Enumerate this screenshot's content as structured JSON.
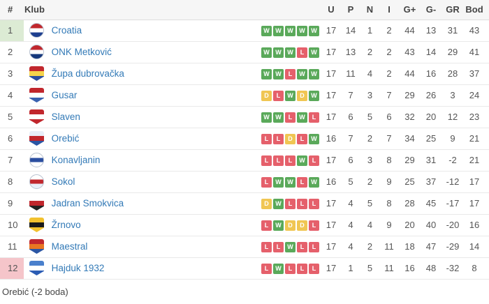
{
  "table": {
    "headers": {
      "pos": "#",
      "club": "Klub",
      "form": "",
      "u": "U",
      "p": "P",
      "n": "N",
      "i": "I",
      "g_plus": "G+",
      "g_minus": "G-",
      "gr": "GR",
      "bod": "Bod"
    },
    "rows": [
      {
        "pos": "1",
        "club": "Croatia",
        "highlight": "top",
        "form": [
          "W",
          "W",
          "W",
          "W",
          "W"
        ],
        "u": "17",
        "p": "14",
        "n": "1",
        "i": "2",
        "gp": "44",
        "gm": "13",
        "gr": "31",
        "bod": "43",
        "icon": {
          "name": "croatia-crest-icon",
          "shape": "circle",
          "colors": [
            "#c1272d",
            "#ffffff",
            "#1e3f8f"
          ]
        }
      },
      {
        "pos": "2",
        "club": "ONK Metković",
        "highlight": "",
        "form": [
          "W",
          "W",
          "W",
          "L",
          "W"
        ],
        "u": "17",
        "p": "13",
        "n": "2",
        "i": "2",
        "gp": "43",
        "gm": "14",
        "gr": "29",
        "bod": "41",
        "icon": {
          "name": "onk-metkovic-crest-icon",
          "shape": "circle",
          "colors": [
            "#c1272d",
            "#ffffff",
            "#16387c"
          ]
        }
      },
      {
        "pos": "3",
        "club": "Župa dubrovačka",
        "highlight": "",
        "form": [
          "W",
          "W",
          "L",
          "W",
          "W"
        ],
        "u": "17",
        "p": "11",
        "n": "4",
        "i": "2",
        "gp": "44",
        "gm": "16",
        "gr": "28",
        "bod": "37",
        "icon": {
          "name": "zupa-dubrovacka-crest-icon",
          "shape": "shield",
          "colors": [
            "#c1272d",
            "#f5d34c",
            "#2b4ea0"
          ]
        }
      },
      {
        "pos": "4",
        "club": "Gusar",
        "highlight": "",
        "form": [
          "D",
          "L",
          "W",
          "D",
          "W"
        ],
        "u": "17",
        "p": "7",
        "n": "3",
        "i": "7",
        "gp": "29",
        "gm": "26",
        "gr": "3",
        "bod": "24",
        "icon": {
          "name": "gusar-crest-icon",
          "shape": "shield",
          "colors": [
            "#c1272d",
            "#ffffff",
            "#3a62b0"
          ]
        }
      },
      {
        "pos": "5",
        "club": "Slaven",
        "highlight": "",
        "form": [
          "W",
          "W",
          "L",
          "W",
          "L"
        ],
        "u": "17",
        "p": "6",
        "n": "5",
        "i": "6",
        "gp": "32",
        "gm": "20",
        "gr": "12",
        "bod": "23",
        "icon": {
          "name": "slaven-crest-icon",
          "shape": "shield",
          "colors": [
            "#c1272d",
            "#ffffff",
            "#c1272d"
          ]
        }
      },
      {
        "pos": "6",
        "club": "Orebić",
        "highlight": "",
        "form": [
          "L",
          "L",
          "D",
          "L",
          "W"
        ],
        "u": "16",
        "p": "7",
        "n": "2",
        "i": "7",
        "gp": "34",
        "gm": "25",
        "gr": "9",
        "bod": "21",
        "icon": {
          "name": "orebic-crest-icon",
          "shape": "shield",
          "colors": [
            "#e8eef8",
            "#c1272d",
            "#2b56a4"
          ]
        }
      },
      {
        "pos": "7",
        "club": "Konavljanin",
        "highlight": "",
        "form": [
          "L",
          "L",
          "L",
          "W",
          "L"
        ],
        "u": "17",
        "p": "6",
        "n": "3",
        "i": "8",
        "gp": "29",
        "gm": "31",
        "gr": "-2",
        "bod": "21",
        "icon": {
          "name": "konavljanin-crest-icon",
          "shape": "circle",
          "colors": [
            "#ffffff",
            "#2b4ea0",
            "#ffffff"
          ]
        }
      },
      {
        "pos": "8",
        "club": "Sokol",
        "highlight": "",
        "form": [
          "L",
          "W",
          "W",
          "L",
          "W"
        ],
        "u": "16",
        "p": "5",
        "n": "2",
        "i": "9",
        "gp": "25",
        "gm": "37",
        "gr": "-12",
        "bod": "17",
        "icon": {
          "name": "sokol-crest-icon",
          "shape": "circle",
          "colors": [
            "#ffffff",
            "#c1272d",
            "#e8eef8"
          ]
        }
      },
      {
        "pos": "9",
        "club": "Jadran Smokvica",
        "highlight": "",
        "form": [
          "D",
          "W",
          "L",
          "L",
          "L"
        ],
        "u": "17",
        "p": "4",
        "n": "5",
        "i": "8",
        "gp": "28",
        "gm": "45",
        "gr": "-17",
        "bod": "17",
        "icon": {
          "name": "jadran-smokvica-crest-icon",
          "shape": "shield",
          "colors": [
            "#ffffff",
            "#c1272d",
            "#222222"
          ]
        }
      },
      {
        "pos": "10",
        "club": "Žrnovo",
        "highlight": "",
        "form": [
          "L",
          "W",
          "D",
          "D",
          "L"
        ],
        "u": "17",
        "p": "4",
        "n": "4",
        "i": "9",
        "gp": "20",
        "gm": "40",
        "gr": "-20",
        "bod": "16",
        "icon": {
          "name": "zrnovo-crest-icon",
          "shape": "shield",
          "colors": [
            "#f2c12e",
            "#1a1a1a",
            "#f2c12e"
          ]
        }
      },
      {
        "pos": "11",
        "club": "Maestral",
        "highlight": "",
        "form": [
          "L",
          "L",
          "W",
          "L",
          "L"
        ],
        "u": "17",
        "p": "4",
        "n": "2",
        "i": "11",
        "gp": "18",
        "gm": "47",
        "gr": "-29",
        "bod": "14",
        "icon": {
          "name": "maestral-crest-icon",
          "shape": "shield",
          "colors": [
            "#c1272d",
            "#e87722",
            "#2b56a4"
          ]
        }
      },
      {
        "pos": "12",
        "club": "Hajduk 1932",
        "highlight": "bottom",
        "form": [
          "L",
          "W",
          "L",
          "L",
          "L"
        ],
        "u": "17",
        "p": "1",
        "n": "5",
        "i": "11",
        "gp": "16",
        "gm": "48",
        "gr": "-32",
        "bod": "8",
        "icon": {
          "name": "hajduk-1932-crest-icon",
          "shape": "shield",
          "colors": [
            "#4a80cc",
            "#ffffff",
            "#2b5cb4"
          ]
        }
      }
    ]
  },
  "footer": {
    "note": "Orebić (-2 boda)"
  },
  "colors": {
    "win": "#5aa95a",
    "draw": "#f0c653",
    "loss": "#e5606b",
    "link": "#337ab7",
    "promotion_bg": "#dcebd4",
    "relegation_bg": "#f5c5ca"
  }
}
